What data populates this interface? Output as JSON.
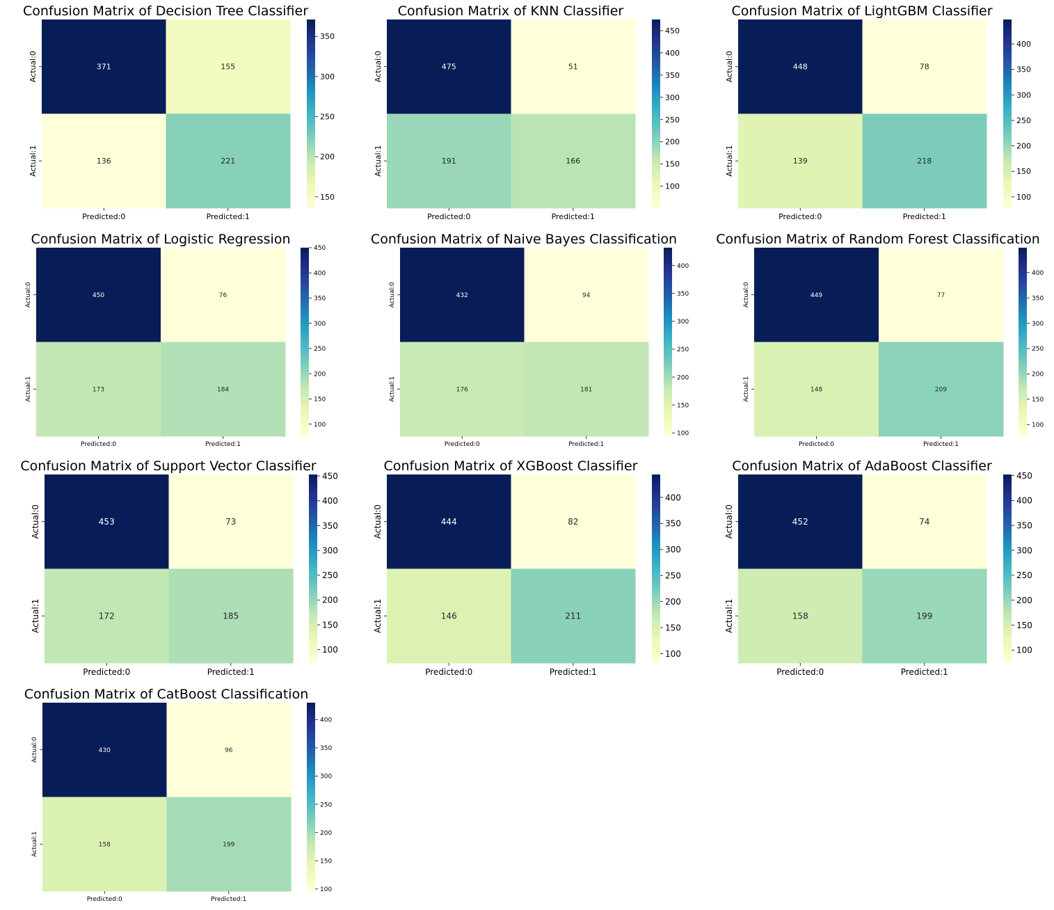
{
  "figure": {
    "background": "#ffffff",
    "colormap": "YlGnBu"
  },
  "chart_data": [
    {
      "type": "heatmap",
      "title": "Confusion Matrix of Decision Tree Classifier",
      "xticklabels": [
        "Predicted:0",
        "Predicted:1"
      ],
      "yticklabels": [
        "Actual:0",
        "Actual:1"
      ],
      "values": [
        [
          371,
          155
        ],
        [
          136,
          221
        ]
      ],
      "colorbar": {
        "min": 136,
        "max": 371,
        "ticks": [
          150,
          200,
          250,
          300,
          350
        ]
      }
    },
    {
      "type": "heatmap",
      "title": "Confusion Matrix of KNN Classifier",
      "xticklabels": [
        "Predicted:0",
        "Predicted:1"
      ],
      "yticklabels": [
        "Actual:0",
        "Actual:1"
      ],
      "values": [
        [
          475,
          51
        ],
        [
          191,
          166
        ]
      ],
      "colorbar": {
        "min": 51,
        "max": 475,
        "ticks": [
          100,
          150,
          200,
          250,
          300,
          350,
          400,
          450
        ]
      }
    },
    {
      "type": "heatmap",
      "title": "Confusion Matrix of LightGBM Classifier",
      "xticklabels": [
        "Predicted:0",
        "Predicted:1"
      ],
      "yticklabels": [
        "Actual:0",
        "Actual:1"
      ],
      "values": [
        [
          448,
          78
        ],
        [
          139,
          218
        ]
      ],
      "colorbar": {
        "min": 78,
        "max": 448,
        "ticks": [
          100,
          150,
          200,
          250,
          300,
          350,
          400
        ]
      }
    },
    {
      "type": "heatmap",
      "title": "Confusion Matrix of Logistic Regression",
      "xticklabels": [
        "Predicted:0",
        "Predicted:1"
      ],
      "yticklabels": [
        "Actual:0",
        "Actual:1"
      ],
      "values": [
        [
          450,
          76
        ],
        [
          173,
          184
        ]
      ],
      "colorbar": {
        "min": 76,
        "max": 450,
        "ticks": [
          100,
          150,
          200,
          250,
          300,
          350,
          400,
          450
        ]
      }
    },
    {
      "type": "heatmap",
      "title": "Confusion Matrix of Naive Bayes Classification",
      "xticklabels": [
        "Predicted:0",
        "Predicted:1"
      ],
      "yticklabels": [
        "Actual:0",
        "Actual:1"
      ],
      "values": [
        [
          432,
          94
        ],
        [
          176,
          181
        ]
      ],
      "colorbar": {
        "min": 94,
        "max": 432,
        "ticks": [
          100,
          150,
          200,
          250,
          300,
          350,
          400
        ]
      }
    },
    {
      "type": "heatmap",
      "title": "Confusion Matrix of Random Forest Classification",
      "xticklabels": [
        "Predicted:0",
        "Predicted:1"
      ],
      "yticklabels": [
        "Actual:0",
        "Actual:1"
      ],
      "values": [
        [
          449,
          77
        ],
        [
          148,
          209
        ]
      ],
      "colorbar": {
        "min": 77,
        "max": 449,
        "ticks": [
          100,
          150,
          200,
          250,
          300,
          350,
          400
        ]
      }
    },
    {
      "type": "heatmap",
      "title": "Confusion Matrix of Support Vector Classifier",
      "xticklabels": [
        "Predicted:0",
        "Predicted:1"
      ],
      "yticklabels": [
        "Actual:0",
        "Actual:1"
      ],
      "values": [
        [
          453,
          73
        ],
        [
          172,
          185
        ]
      ],
      "colorbar": {
        "min": 73,
        "max": 453,
        "ticks": [
          100,
          150,
          200,
          250,
          300,
          350,
          400,
          450
        ]
      }
    },
    {
      "type": "heatmap",
      "title": "Confusion Matrix of XGBoost Classifier",
      "xticklabels": [
        "Predicted:0",
        "Predicted:1"
      ],
      "yticklabels": [
        "Actual:0",
        "Actual:1"
      ],
      "values": [
        [
          444,
          82
        ],
        [
          146,
          211
        ]
      ],
      "colorbar": {
        "min": 82,
        "max": 444,
        "ticks": [
          100,
          150,
          200,
          250,
          300,
          350,
          400
        ]
      }
    },
    {
      "type": "heatmap",
      "title": "Confusion Matrix of AdaBoost Classifier",
      "xticklabels": [
        "Predicted:0",
        "Predicted:1"
      ],
      "yticklabels": [
        "Actual:0",
        "Actual:1"
      ],
      "values": [
        [
          452,
          74
        ],
        [
          158,
          199
        ]
      ],
      "colorbar": {
        "min": 74,
        "max": 452,
        "ticks": [
          100,
          150,
          200,
          250,
          300,
          350,
          400,
          450
        ]
      }
    },
    {
      "type": "heatmap",
      "title": "Confusion Matrix of CatBoost Classification",
      "xticklabels": [
        "Predicted:0",
        "Predicted:1"
      ],
      "yticklabels": [
        "Actual:0",
        "Actual:1"
      ],
      "values": [
        [
          430,
          96
        ],
        [
          158,
          199
        ]
      ],
      "colorbar": {
        "min": 96,
        "max": 430,
        "ticks": [
          100,
          150,
          200,
          250,
          300,
          350,
          400
        ]
      }
    }
  ]
}
